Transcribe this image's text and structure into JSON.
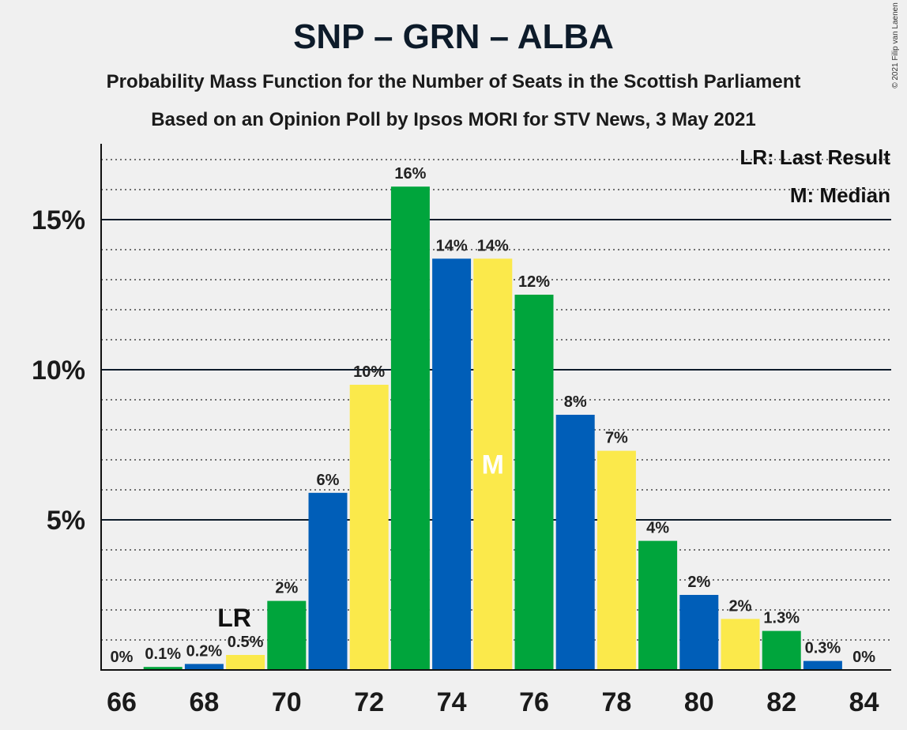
{
  "title": "SNP – GRN – ALBA",
  "subtitle1": "Probability Mass Function for the Number of Seats in the Scottish Parliament",
  "subtitle2": "Based on an Opinion Poll by Ipsos MORI for STV News, 3 May 2021",
  "copyright": "© 2021 Filip van Laenen",
  "legend": {
    "last_result": "LR: Last Result",
    "median": "M: Median"
  },
  "colors": {
    "blue": "#005eb8",
    "yellow": "#fbe94b",
    "green": "#00a53c"
  },
  "chart_data": {
    "type": "bar",
    "x": [
      66,
      67,
      68,
      69,
      70,
      71,
      72,
      73,
      74,
      75,
      76,
      77,
      78,
      79,
      80,
      81,
      82,
      83,
      84
    ],
    "values": [
      0,
      0.1,
      0.2,
      0.5,
      2.3,
      5.9,
      9.5,
      16.1,
      13.7,
      13.7,
      12.5,
      8.5,
      7.3,
      4.3,
      2.5,
      1.7,
      1.3,
      0.3,
      0
    ],
    "labels": [
      "0%",
      "0.1%",
      "0.2%",
      "0.5%",
      "2%",
      "6%",
      "10%",
      "16%",
      "14%",
      "14%",
      "12%",
      "8%",
      "7%",
      "4%",
      "2%",
      "2%",
      "1.3%",
      "0.3%",
      "0%"
    ],
    "bar_colors": [
      "blue",
      "green",
      "blue",
      "yellow",
      "green",
      "blue",
      "yellow",
      "green",
      "blue",
      "yellow",
      "green",
      "blue",
      "yellow",
      "green",
      "blue",
      "yellow",
      "green",
      "blue",
      "yellow"
    ],
    "xticks": [
      "66",
      "68",
      "70",
      "72",
      "74",
      "76",
      "78",
      "80",
      "82",
      "84"
    ],
    "yticks": [
      {
        "value": 5,
        "label": "5%"
      },
      {
        "value": 10,
        "label": "10%"
      },
      {
        "value": 15,
        "label": "15%"
      }
    ],
    "ylim": [
      0,
      17.5
    ],
    "last_result_x": 69,
    "last_result_marker": "LR",
    "median_x": 75,
    "median_marker": "M"
  }
}
